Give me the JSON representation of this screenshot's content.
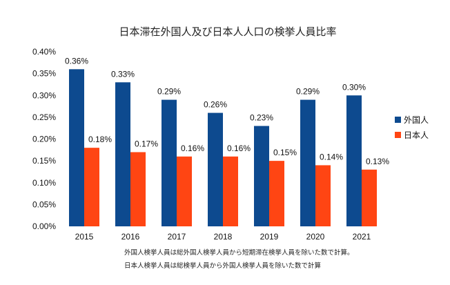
{
  "chart_data": {
    "type": "bar",
    "title": "日本滞在外国人及び日本人人口の検挙人員比率",
    "categories": [
      "2015",
      "2016",
      "2017",
      "2018",
      "2019",
      "2020",
      "2021"
    ],
    "series": [
      {
        "name": "外国人",
        "color": "#0d4a8f",
        "values": [
          0.36,
          0.33,
          0.29,
          0.26,
          0.23,
          0.29,
          0.3
        ]
      },
      {
        "name": "日本人",
        "color": "#ff4513",
        "values": [
          0.18,
          0.17,
          0.16,
          0.16,
          0.15,
          0.14,
          0.13
        ]
      }
    ],
    "ylim": [
      0,
      0.4
    ],
    "yticks": [
      "0.00%",
      "0.05%",
      "0.10%",
      "0.15%",
      "0.20%",
      "0.25%",
      "0.30%",
      "0.35%",
      "0.40%"
    ],
    "value_format": "percent",
    "legend_position": "right",
    "grid": false
  },
  "notes": [
    "外国人検挙人員は総外国人検挙人員から短期滞在検挙人員を除いた数で計算。",
    "日本人検挙人員は総検挙人員から外国人検挙人員を除いた数で計算"
  ]
}
